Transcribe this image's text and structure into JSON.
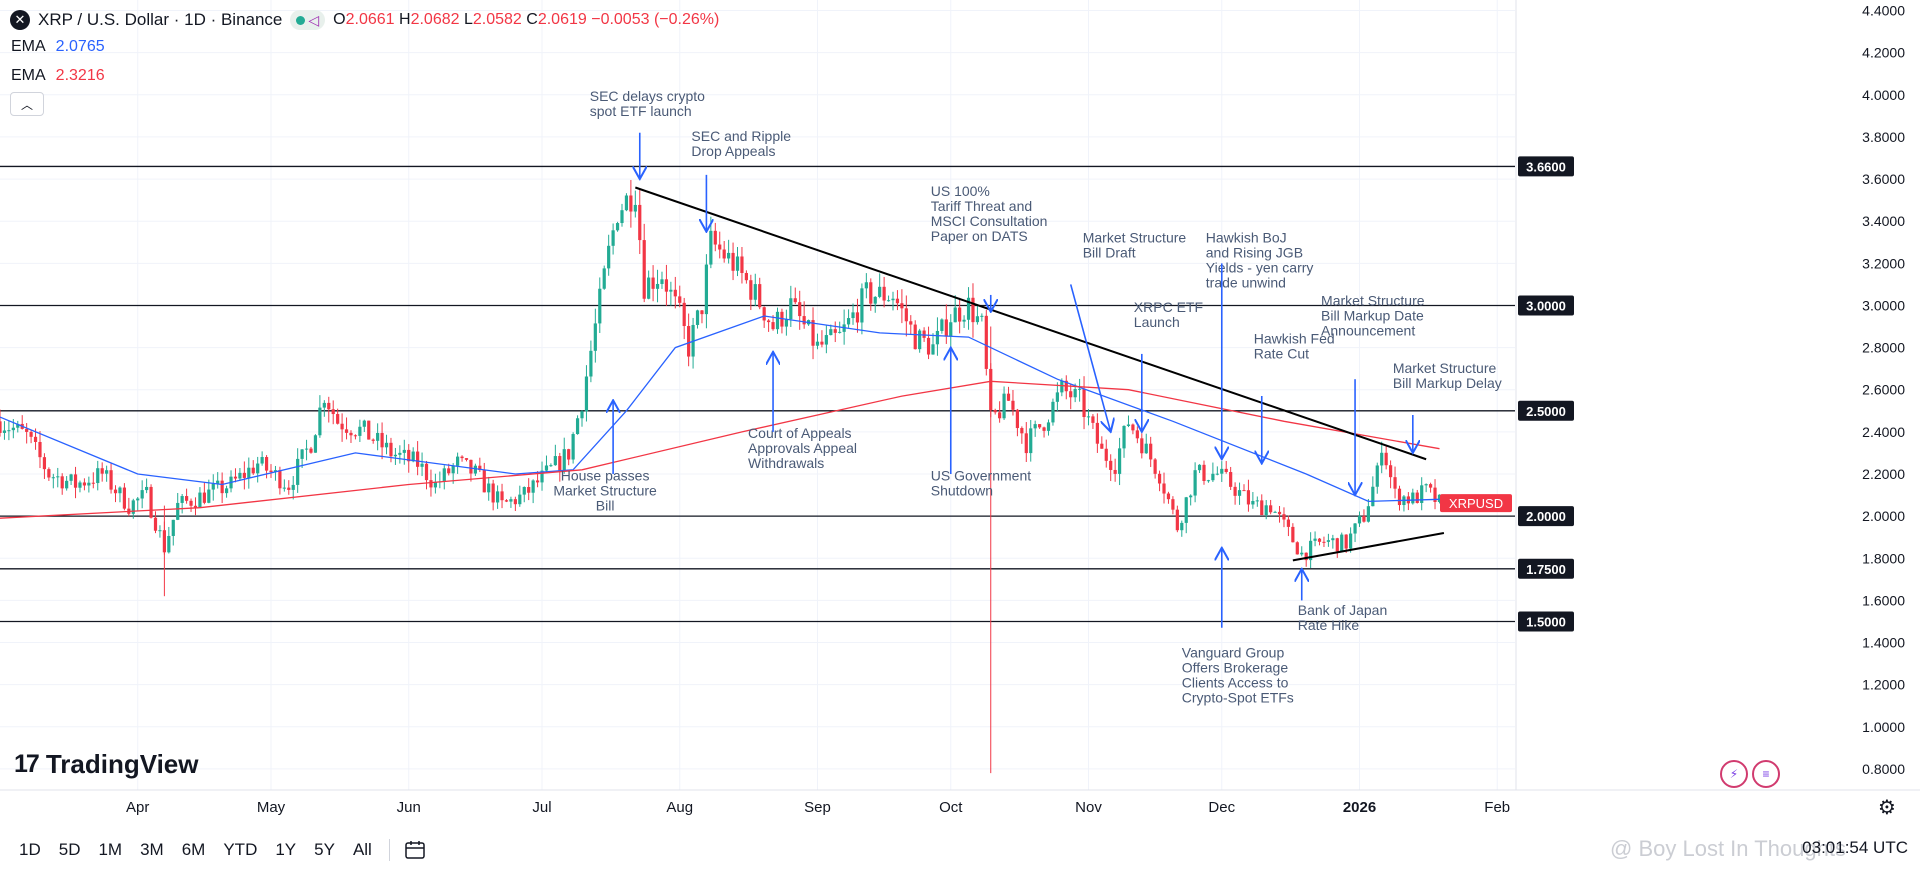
{
  "header": {
    "symbol_icon": "x-logo-icon",
    "title": "XRP / U.S. Dollar · 1D · Binance",
    "open_label": "O",
    "open": "2.0661",
    "high_label": "H",
    "high": "2.0682",
    "low_label": "L",
    "low": "2.0582",
    "close_label": "C",
    "close": "2.0619",
    "change": "−0.0053 (−0.26%)",
    "ema1_label": "EMA",
    "ema1_value": "2.0765",
    "ema2_label": "EMA",
    "ema2_value": "2.3216"
  },
  "toolbar": {
    "timeframes": [
      "1D",
      "5D",
      "1M",
      "3M",
      "6M",
      "YTD",
      "1Y",
      "5Y",
      "All"
    ],
    "clock": "03:01:54 UTC"
  },
  "branding": {
    "logo_text": "TradingView",
    "logo_mark": "17"
  },
  "watermark": "@ Boy Lost In Thoughts",
  "colors": {
    "up": "#22ab94",
    "down": "#f23645",
    "ema_fast": "#2962ff",
    "ema_slow": "#f23645",
    "line": "#000000",
    "annot": "#2962ff"
  },
  "chart_data": {
    "type": "candlestick",
    "symbol_tag": "XRPUSD",
    "last_price": 2.0619,
    "ylim": [
      0.7,
      4.45
    ],
    "y_ticks": [
      0.8,
      1.0,
      1.2,
      1.4,
      1.6,
      1.8,
      2.0,
      2.2,
      2.4,
      2.6,
      2.8,
      3.0,
      3.2,
      3.4,
      3.6,
      3.8,
      4.0,
      4.2,
      4.4
    ],
    "y_tick_labels": [
      "0.8000",
      "1.0000",
      "1.2000",
      "1.4000",
      "1.6000",
      "1.8000",
      "2.0000",
      "2.2000",
      "2.4000",
      "2.6000",
      "2.8000",
      "3.0000",
      "3.2000",
      "3.4000",
      "3.6000",
      "3.8000",
      "4.0000",
      "4.2000",
      "4.4000"
    ],
    "x_ticks": [
      {
        "date": "2025-04-01",
        "label": "Apr"
      },
      {
        "date": "2025-05-01",
        "label": "May"
      },
      {
        "date": "2025-06-01",
        "label": "Jun"
      },
      {
        "date": "2025-07-01",
        "label": "Jul"
      },
      {
        "date": "2025-08-01",
        "label": "Aug"
      },
      {
        "date": "2025-09-01",
        "label": "Sep"
      },
      {
        "date": "2025-10-01",
        "label": "Oct"
      },
      {
        "date": "2025-11-01",
        "label": "Nov"
      },
      {
        "date": "2025-12-01",
        "label": "Dec"
      },
      {
        "date": "2026-01-01",
        "label": "2026"
      },
      {
        "date": "2026-02-01",
        "label": "Feb"
      }
    ],
    "xlim": [
      "2025-03-01",
      "2026-02-05"
    ],
    "horizontal_levels": [
      {
        "value": 3.66,
        "label": "3.6600"
      },
      {
        "value": 3.0,
        "label": "3.0000"
      },
      {
        "value": 2.5,
        "label": "2.5000"
      },
      {
        "value": 2.0,
        "label": "2.0000"
      },
      {
        "value": 1.75,
        "label": "1.7500"
      },
      {
        "value": 1.5,
        "label": "1.5000"
      }
    ],
    "trendlines": [
      {
        "from": {
          "date": "2025-07-22",
          "value": 3.56
        },
        "to": {
          "date": "2026-01-16",
          "value": 2.27
        }
      },
      {
        "from": {
          "date": "2025-12-17",
          "value": 1.79
        },
        "to": {
          "date": "2026-01-20",
          "value": 1.92
        }
      }
    ],
    "price_path": [
      {
        "date": "2025-03-01",
        "value": 2.45
      },
      {
        "date": "2025-03-07",
        "value": 2.38
      },
      {
        "date": "2025-03-12",
        "value": 2.2
      },
      {
        "date": "2025-03-18",
        "value": 2.15
      },
      {
        "date": "2025-03-24",
        "value": 2.2
      },
      {
        "date": "2025-03-30",
        "value": 2.05
      },
      {
        "date": "2025-04-03",
        "value": 2.1
      },
      {
        "date": "2025-04-07",
        "value": 1.85
      },
      {
        "date": "2025-04-10",
        "value": 2.05
      },
      {
        "date": "2025-04-16",
        "value": 2.1
      },
      {
        "date": "2025-04-22",
        "value": 2.15
      },
      {
        "date": "2025-04-28",
        "value": 2.25
      },
      {
        "date": "2025-05-05",
        "value": 2.15
      },
      {
        "date": "2025-05-10",
        "value": 2.35
      },
      {
        "date": "2025-05-13",
        "value": 2.58
      },
      {
        "date": "2025-05-16",
        "value": 2.45
      },
      {
        "date": "2025-05-22",
        "value": 2.4
      },
      {
        "date": "2025-05-28",
        "value": 2.3
      },
      {
        "date": "2025-06-03",
        "value": 2.25
      },
      {
        "date": "2025-06-07",
        "value": 2.15
      },
      {
        "date": "2025-06-12",
        "value": 2.25
      },
      {
        "date": "2025-06-16",
        "value": 2.2
      },
      {
        "date": "2025-06-22",
        "value": 2.05
      },
      {
        "date": "2025-06-27",
        "value": 2.1
      },
      {
        "date": "2025-07-02",
        "value": 2.2
      },
      {
        "date": "2025-07-07",
        "value": 2.3
      },
      {
        "date": "2025-07-10",
        "value": 2.55
      },
      {
        "date": "2025-07-13",
        "value": 2.9
      },
      {
        "date": "2025-07-16",
        "value": 3.25
      },
      {
        "date": "2025-07-18",
        "value": 3.45
      },
      {
        "date": "2025-07-20",
        "value": 3.5
      },
      {
        "date": "2025-07-22",
        "value": 3.55
      },
      {
        "date": "2025-07-24",
        "value": 3.1
      },
      {
        "date": "2025-07-28",
        "value": 3.15
      },
      {
        "date": "2025-08-01",
        "value": 2.95
      },
      {
        "date": "2025-08-03",
        "value": 2.8
      },
      {
        "date": "2025-08-06",
        "value": 3.0
      },
      {
        "date": "2025-08-08",
        "value": 3.3
      },
      {
        "date": "2025-08-13",
        "value": 3.2
      },
      {
        "date": "2025-08-18",
        "value": 3.05
      },
      {
        "date": "2025-08-22",
        "value": 2.9
      },
      {
        "date": "2025-08-26",
        "value": 3.0
      },
      {
        "date": "2025-09-01",
        "value": 2.8
      },
      {
        "date": "2025-09-06",
        "value": 2.85
      },
      {
        "date": "2025-09-12",
        "value": 3.05
      },
      {
        "date": "2025-09-18",
        "value": 3.05
      },
      {
        "date": "2025-09-23",
        "value": 2.85
      },
      {
        "date": "2025-09-27",
        "value": 2.8
      },
      {
        "date": "2025-10-01",
        "value": 2.95
      },
      {
        "date": "2025-10-05",
        "value": 3.0
      },
      {
        "date": "2025-10-08",
        "value": 2.9
      },
      {
        "date": "2025-10-10",
        "value": 2.45
      },
      {
        "date": "2025-10-14",
        "value": 2.55
      },
      {
        "date": "2025-10-18",
        "value": 2.35
      },
      {
        "date": "2025-10-22",
        "value": 2.45
      },
      {
        "date": "2025-10-26",
        "value": 2.6
      },
      {
        "date": "2025-10-30",
        "value": 2.55
      },
      {
        "date": "2025-11-04",
        "value": 2.3
      },
      {
        "date": "2025-11-07",
        "value": 2.25
      },
      {
        "date": "2025-11-10",
        "value": 2.45
      },
      {
        "date": "2025-11-13",
        "value": 2.35
      },
      {
        "date": "2025-11-17",
        "value": 2.2
      },
      {
        "date": "2025-11-21",
        "value": 1.95
      },
      {
        "date": "2025-11-25",
        "value": 2.2
      },
      {
        "date": "2025-11-30",
        "value": 2.2
      },
      {
        "date": "2025-12-03",
        "value": 2.15
      },
      {
        "date": "2025-12-08",
        "value": 2.05
      },
      {
        "date": "2025-12-12",
        "value": 2.05
      },
      {
        "date": "2025-12-16",
        "value": 1.92
      },
      {
        "date": "2025-12-19",
        "value": 1.82
      },
      {
        "date": "2025-12-24",
        "value": 1.88
      },
      {
        "date": "2025-12-29",
        "value": 1.87
      },
      {
        "date": "2026-01-02",
        "value": 2.0
      },
      {
        "date": "2026-01-05",
        "value": 2.2
      },
      {
        "date": "2026-01-06",
        "value": 2.35
      },
      {
        "date": "2026-01-09",
        "value": 2.1
      },
      {
        "date": "2026-01-13",
        "value": 2.08
      },
      {
        "date": "2026-01-16",
        "value": 2.12
      },
      {
        "date": "2026-01-19",
        "value": 2.06
      }
    ],
    "spikes": [
      {
        "date": "2025-04-07",
        "low": 1.62,
        "high": 2.05
      },
      {
        "date": "2025-10-10",
        "low": 0.78,
        "high": 2.9
      }
    ],
    "series": [
      {
        "name": "EMA",
        "color": "#2962ff",
        "points": [
          {
            "date": "2025-03-01",
            "value": 2.47
          },
          {
            "date": "2025-04-01",
            "value": 2.2
          },
          {
            "date": "2025-04-20",
            "value": 2.15
          },
          {
            "date": "2025-05-20",
            "value": 2.3
          },
          {
            "date": "2025-06-25",
            "value": 2.2
          },
          {
            "date": "2025-07-08",
            "value": 2.22
          },
          {
            "date": "2025-07-20",
            "value": 2.5
          },
          {
            "date": "2025-07-31",
            "value": 2.8
          },
          {
            "date": "2025-08-20",
            "value": 2.95
          },
          {
            "date": "2025-09-15",
            "value": 2.87
          },
          {
            "date": "2025-10-05",
            "value": 2.85
          },
          {
            "date": "2025-10-25",
            "value": 2.65
          },
          {
            "date": "2025-11-20",
            "value": 2.45
          },
          {
            "date": "2025-12-20",
            "value": 2.2
          },
          {
            "date": "2026-01-03",
            "value": 2.07
          },
          {
            "date": "2026-01-19",
            "value": 2.08
          }
        ]
      },
      {
        "name": "EMA",
        "color": "#f23645",
        "points": [
          {
            "date": "2025-03-01",
            "value": 1.99
          },
          {
            "date": "2025-04-15",
            "value": 2.04
          },
          {
            "date": "2025-06-01",
            "value": 2.15
          },
          {
            "date": "2025-07-10",
            "value": 2.22
          },
          {
            "date": "2025-08-15",
            "value": 2.4
          },
          {
            "date": "2025-09-20",
            "value": 2.57
          },
          {
            "date": "2025-10-10",
            "value": 2.64
          },
          {
            "date": "2025-11-10",
            "value": 2.6
          },
          {
            "date": "2025-12-15",
            "value": 2.45
          },
          {
            "date": "2026-01-19",
            "value": 2.32
          }
        ]
      }
    ],
    "annotations": [
      {
        "text": "SEC delays crypto\nspot ETF launch",
        "date": "2025-07-23",
        "value": 3.97,
        "arrow_from": 3.82,
        "arrow_to": 3.6,
        "anchor": "start",
        "dx": -50
      },
      {
        "text": "SEC and Ripple\nDrop Appeals",
        "date": "2025-08-07",
        "value": 3.78,
        "arrow_from": 3.62,
        "arrow_to": 3.35,
        "anchor": "start",
        "dx": -15
      },
      {
        "text": "US 100%\nTariff Threat and\nMSCI Consultation\nPaper on DATS",
        "date": "2025-10-10",
        "value": 3.52,
        "arrow_from": 3.05,
        "arrow_to": 2.97,
        "anchor": "start",
        "dx": -60
      },
      {
        "text": "Market Structure\nBill Draft",
        "date": "2025-11-06",
        "value": 3.3,
        "arrow_from": 3.1,
        "arrow_to": 2.4,
        "anchor": "start",
        "dx": -28,
        "diag": true
      },
      {
        "text": "XRPC ETF\nLaunch",
        "date": "2025-11-13",
        "value": 2.97,
        "arrow_from": 2.77,
        "arrow_to": 2.4,
        "anchor": "start",
        "dx": -8
      },
      {
        "text": "Hawkish BoJ\nand Rising JGB\nYields - yen carry\ntrade unwind",
        "date": "2025-12-01",
        "value": 3.3,
        "arrow_from": 3.2,
        "arrow_to": 2.27,
        "anchor": "start",
        "dx": -16
      },
      {
        "text": "Hawkish Fed\nRate Cut",
        "date": "2025-12-10",
        "value": 2.82,
        "arrow_from": 2.57,
        "arrow_to": 2.25,
        "anchor": "start",
        "dx": -8
      },
      {
        "text": "Market Structure\nBill Markup Date\nAnnouncement",
        "date": "2025-12-31",
        "value": 3.0,
        "arrow_from": 2.65,
        "arrow_to": 2.1,
        "anchor": "start",
        "dx": -34
      },
      {
        "text": "Market Structure\nBill Markup Delay",
        "date": "2026-01-13",
        "value": 2.68,
        "arrow_from": 2.48,
        "arrow_to": 2.3,
        "anchor": "start",
        "dx": -20
      },
      {
        "text": "House passes\nMarket Structure\nBill",
        "date": "2025-07-17",
        "value": 2.17,
        "arrow_from": 2.2,
        "arrow_to": 2.55,
        "anchor": "middle",
        "dx": -8,
        "up": true
      },
      {
        "text": "Court of Appeals\nApprovals Appeal\nWithdrawals",
        "date": "2025-08-22",
        "value": 2.37,
        "arrow_from": 2.4,
        "arrow_to": 2.78,
        "anchor": "start",
        "dx": -25,
        "up": true
      },
      {
        "text": "US Government\nShutdown",
        "date": "2025-10-01",
        "value": 2.17,
        "arrow_from": 2.2,
        "arrow_to": 2.8,
        "anchor": "start",
        "dx": -20,
        "up": true
      },
      {
        "text": "Vanguard Group\nOffers Brokerage\nClients Access to\nCrypto-Spot ETFs",
        "date": "2025-12-01",
        "value": 1.33,
        "arrow_from": 1.47,
        "arrow_to": 1.85,
        "anchor": "start",
        "dx": -40,
        "up": true
      },
      {
        "text": "Bank of Japan\nRate Hike",
        "date": "2025-12-19",
        "value": 1.53,
        "arrow_from": 1.6,
        "arrow_to": 1.75,
        "anchor": "start",
        "dx": -4,
        "up": true
      }
    ]
  }
}
